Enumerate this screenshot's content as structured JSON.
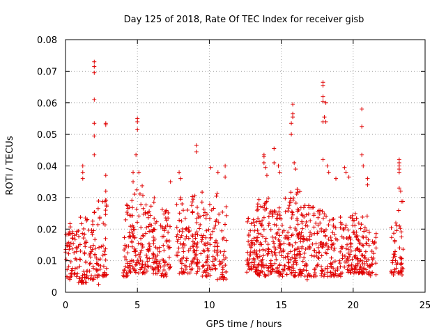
{
  "chart_data": {
    "type": "scatter",
    "title": "Day 125 of 2018, Rate Of TEC Index for receiver gisb",
    "xlabel": "GPS time / hours",
    "ylabel": "ROTI / TECUs",
    "xlim": [
      0,
      25
    ],
    "ylim": [
      0,
      0.08
    ],
    "xticks": [
      0,
      5,
      10,
      15,
      20,
      25
    ],
    "xtick_labels": [
      "0",
      "5",
      "10",
      "15",
      "20",
      "25"
    ],
    "yticks": [
      0,
      0.01,
      0.02,
      0.03,
      0.04,
      0.05,
      0.06,
      0.07,
      0.08
    ],
    "ytick_labels": [
      "0",
      "0.01",
      "0.02",
      "0.03",
      "0.04",
      "0.05",
      "0.06",
      "0.07",
      "0.08"
    ],
    "grid": true,
    "marker": "+",
    "color": "#e00000",
    "clusters": [
      {
        "x0": 0.0,
        "x1": 0.4,
        "ylo": 0.004,
        "yhi": 0.022,
        "n": 28
      },
      {
        "x0": 0.4,
        "x1": 0.9,
        "ylo": 0.005,
        "yhi": 0.02,
        "n": 30
      },
      {
        "x0": 0.9,
        "x1": 1.5,
        "ylo": 0.003,
        "yhi": 0.024,
        "n": 45
      },
      {
        "x0": 1.5,
        "x1": 2.2,
        "ylo": 0.004,
        "yhi": 0.026,
        "n": 40
      },
      {
        "x0": 2.2,
        "x1": 2.9,
        "ylo": 0.005,
        "yhi": 0.03,
        "n": 45
      },
      {
        "x0": 4.0,
        "x1": 4.6,
        "ylo": 0.005,
        "yhi": 0.03,
        "n": 45
      },
      {
        "x0": 4.6,
        "x1": 5.4,
        "ylo": 0.006,
        "yhi": 0.034,
        "n": 65
      },
      {
        "x0": 5.4,
        "x1": 6.3,
        "ylo": 0.006,
        "yhi": 0.03,
        "n": 70
      },
      {
        "x0": 6.3,
        "x1": 7.3,
        "ylo": 0.005,
        "yhi": 0.027,
        "n": 65
      },
      {
        "x0": 7.7,
        "x1": 8.6,
        "ylo": 0.006,
        "yhi": 0.03,
        "n": 60
      },
      {
        "x0": 8.6,
        "x1": 9.5,
        "ylo": 0.006,
        "yhi": 0.032,
        "n": 65
      },
      {
        "x0": 9.5,
        "x1": 10.4,
        "ylo": 0.005,
        "yhi": 0.028,
        "n": 60
      },
      {
        "x0": 10.4,
        "x1": 11.2,
        "ylo": 0.004,
        "yhi": 0.032,
        "n": 50
      },
      {
        "x0": 12.6,
        "x1": 13.3,
        "ylo": 0.006,
        "yhi": 0.024,
        "n": 55
      },
      {
        "x0": 13.3,
        "x1": 14.1,
        "ylo": 0.005,
        "yhi": 0.03,
        "n": 80
      },
      {
        "x0": 14.1,
        "x1": 14.8,
        "ylo": 0.006,
        "yhi": 0.026,
        "n": 55
      },
      {
        "x0": 14.8,
        "x1": 15.5,
        "ylo": 0.005,
        "yhi": 0.03,
        "n": 55
      },
      {
        "x0": 15.5,
        "x1": 16.3,
        "ylo": 0.005,
        "yhi": 0.034,
        "n": 80
      },
      {
        "x0": 16.3,
        "x1": 17.3,
        "ylo": 0.005,
        "yhi": 0.028,
        "n": 75
      },
      {
        "x0": 17.3,
        "x1": 18.3,
        "ylo": 0.005,
        "yhi": 0.026,
        "n": 70
      },
      {
        "x0": 18.3,
        "x1": 19.3,
        "ylo": 0.005,
        "yhi": 0.024,
        "n": 60
      },
      {
        "x0": 19.3,
        "x1": 20.3,
        "ylo": 0.006,
        "yhi": 0.026,
        "n": 75
      },
      {
        "x0": 20.3,
        "x1": 21.0,
        "ylo": 0.006,
        "yhi": 0.025,
        "n": 60
      },
      {
        "x0": 21.0,
        "x1": 21.6,
        "ylo": 0.005,
        "yhi": 0.021,
        "n": 30
      },
      {
        "x0": 22.6,
        "x1": 23.1,
        "ylo": 0.006,
        "yhi": 0.022,
        "n": 25
      },
      {
        "x0": 23.1,
        "x1": 23.5,
        "ylo": 0.006,
        "yhi": 0.03,
        "n": 25
      }
    ],
    "outliers": [
      [
        2.0,
        0.073
      ],
      [
        2.0,
        0.0715
      ],
      [
        2.0,
        0.0695
      ],
      [
        2.0,
        0.061
      ],
      [
        2.0,
        0.0535
      ],
      [
        2.0,
        0.0495
      ],
      [
        2.0,
        0.0435
      ],
      [
        2.8,
        0.0535
      ],
      [
        2.8,
        0.053
      ],
      [
        1.2,
        0.04
      ],
      [
        1.2,
        0.038
      ],
      [
        1.2,
        0.036
      ],
      [
        2.8,
        0.037
      ],
      [
        2.8,
        0.032
      ],
      [
        4.7,
        0.038
      ],
      [
        4.7,
        0.035
      ],
      [
        5.0,
        0.055
      ],
      [
        5.0,
        0.054
      ],
      [
        5.0,
        0.0515
      ],
      [
        4.9,
        0.0435
      ],
      [
        5.1,
        0.038
      ],
      [
        7.3,
        0.035
      ],
      [
        7.9,
        0.038
      ],
      [
        8.0,
        0.036
      ],
      [
        9.1,
        0.0465
      ],
      [
        9.1,
        0.0445
      ],
      [
        10.1,
        0.0395
      ],
      [
        10.6,
        0.038
      ],
      [
        11.1,
        0.04
      ],
      [
        11.1,
        0.0365
      ],
      [
        13.8,
        0.0435
      ],
      [
        13.8,
        0.043
      ],
      [
        13.8,
        0.041
      ],
      [
        13.9,
        0.0395
      ],
      [
        14.0,
        0.037
      ],
      [
        14.5,
        0.0455
      ],
      [
        14.5,
        0.041
      ],
      [
        14.8,
        0.04
      ],
      [
        14.9,
        0.038
      ],
      [
        15.8,
        0.0595
      ],
      [
        15.8,
        0.0565
      ],
      [
        15.8,
        0.0555
      ],
      [
        15.7,
        0.0535
      ],
      [
        15.7,
        0.05
      ],
      [
        15.9,
        0.041
      ],
      [
        16.0,
        0.039
      ],
      [
        17.9,
        0.0665
      ],
      [
        17.9,
        0.0655
      ],
      [
        17.9,
        0.062
      ],
      [
        17.9,
        0.0605
      ],
      [
        18.1,
        0.06
      ],
      [
        18.0,
        0.0555
      ],
      [
        17.9,
        0.054
      ],
      [
        18.1,
        0.054
      ],
      [
        17.9,
        0.042
      ],
      [
        18.2,
        0.04
      ],
      [
        18.3,
        0.038
      ],
      [
        18.8,
        0.036
      ],
      [
        19.4,
        0.0395
      ],
      [
        19.5,
        0.038
      ],
      [
        19.7,
        0.0365
      ],
      [
        20.6,
        0.058
      ],
      [
        20.6,
        0.0525
      ],
      [
        20.6,
        0.0435
      ],
      [
        20.7,
        0.04
      ],
      [
        21.0,
        0.036
      ],
      [
        21.0,
        0.034
      ],
      [
        23.2,
        0.042
      ],
      [
        23.2,
        0.041
      ],
      [
        23.2,
        0.04
      ],
      [
        23.2,
        0.039
      ],
      [
        23.2,
        0.038
      ],
      [
        23.2,
        0.033
      ],
      [
        23.3,
        0.032
      ],
      [
        22.8,
        0.0055
      ],
      [
        0.3,
        0.0045
      ],
      [
        1.1,
        0.003
      ],
      [
        2.3,
        0.0025
      ],
      [
        16.8,
        0.004
      ],
      [
        23.4,
        0.0055
      ]
    ]
  }
}
